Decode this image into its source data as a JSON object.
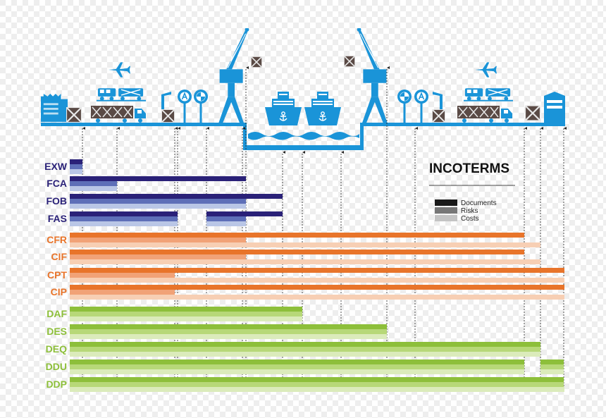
{
  "title": "INCOTERMS",
  "legend": [
    {
      "label": "Documents",
      "color": "#1a1a1a"
    },
    {
      "label": "Risks",
      "color": "#777777"
    },
    {
      "label": "Costs",
      "color": "#c4c4c4"
    }
  ],
  "colors": {
    "icons": "#1a94d8",
    "background_check_light": "#ffffff",
    "background_check_dark": "#ececec",
    "groups": {
      "E": {
        "label": "#2a2178",
        "doc": "#2a2178",
        "risk": "#5e6fb8",
        "cost": "#b9c6e6"
      },
      "C": {
        "label": "#e8742a",
        "doc": "#e8742a",
        "risk": "#f1a277",
        "cost": "#f7cfb4"
      },
      "D": {
        "label": "#8dbf3a",
        "doc": "#8dbf3a",
        "risk": "#b7d878",
        "cost": "#dbebbb"
      }
    }
  },
  "icons": [
    "factory-icon",
    "crate-icon",
    "airplane-icon",
    "train-icon",
    "truck-icon",
    "crane-icon",
    "anchor-sign-icon",
    "ship-icon",
    "waves-icon",
    "warehouse-icon"
  ],
  "stations": [
    1,
    2,
    3,
    4,
    5,
    6,
    7,
    8,
    9,
    10,
    11,
    12,
    13,
    14,
    15,
    16
  ],
  "terms": [
    {
      "code": "EXW",
      "group": "E",
      "doc": [
        [
          0,
          1
        ]
      ],
      "risk": [
        [
          0,
          1
        ]
      ],
      "cost": [
        [
          0,
          1
        ]
      ]
    },
    {
      "code": "FCA",
      "group": "E",
      "doc": [
        [
          0,
          7
        ]
      ],
      "risk": [
        [
          0,
          2
        ]
      ],
      "cost": [
        [
          0,
          2
        ]
      ]
    },
    {
      "code": "FOB",
      "group": "E",
      "doc": [
        [
          0,
          8
        ]
      ],
      "risk": [
        [
          0,
          7
        ]
      ],
      "cost": [
        [
          0,
          7
        ]
      ]
    },
    {
      "code": "FAS",
      "group": "E",
      "doc": [
        [
          0,
          4
        ],
        [
          5,
          8
        ]
      ],
      "risk": [
        [
          0,
          4
        ],
        [
          5,
          7
        ]
      ],
      "cost": [
        [
          0,
          4
        ],
        [
          5,
          7
        ]
      ]
    },
    {
      "code": "CFR",
      "group": "C",
      "doc": [
        [
          0,
          13
        ]
      ],
      "risk": [
        [
          0,
          7
        ]
      ],
      "cost": [
        [
          0,
          14
        ]
      ]
    },
    {
      "code": "CIF",
      "group": "C",
      "doc": [
        [
          0,
          13
        ]
      ],
      "risk": [
        [
          0,
          7
        ]
      ],
      "cost": [
        [
          0,
          14
        ]
      ]
    },
    {
      "code": "CPT",
      "group": "C",
      "doc": [
        [
          0,
          16
        ]
      ],
      "risk": [
        [
          0,
          3
        ]
      ],
      "cost": [
        [
          0,
          16
        ]
      ]
    },
    {
      "code": "CIP",
      "group": "C",
      "doc": [
        [
          0,
          16
        ]
      ],
      "risk": [
        [
          0,
          3
        ]
      ],
      "cost": [
        [
          0,
          16
        ]
      ]
    },
    {
      "code": "DAF",
      "group": "D",
      "doc": [
        [
          0,
          9
        ]
      ],
      "risk": [
        [
          0,
          9
        ]
      ],
      "cost": [
        [
          0,
          9
        ]
      ]
    },
    {
      "code": "DES",
      "group": "D",
      "doc": [
        [
          0,
          11
        ]
      ],
      "risk": [
        [
          0,
          11
        ]
      ],
      "cost": [
        [
          0,
          11
        ]
      ]
    },
    {
      "code": "DEQ",
      "group": "D",
      "doc": [
        [
          0,
          14
        ]
      ],
      "risk": [
        [
          0,
          14
        ]
      ],
      "cost": [
        [
          0,
          14
        ]
      ]
    },
    {
      "code": "DDU",
      "group": "D",
      "doc": [
        [
          0,
          13
        ],
        [
          14,
          15
        ]
      ],
      "risk": [
        [
          0,
          13
        ],
        [
          14,
          15
        ]
      ],
      "cost": [
        [
          0,
          13
        ],
        [
          14,
          15
        ]
      ]
    },
    {
      "code": "DDP",
      "group": "D",
      "doc": [
        [
          0,
          15
        ]
      ],
      "risk": [
        [
          0,
          15
        ]
      ],
      "cost": [
        [
          0,
          17
        ]
      ]
    }
  ]
}
